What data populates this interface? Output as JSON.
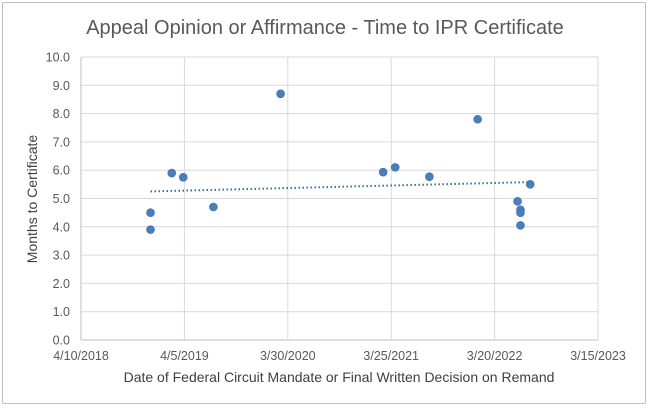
{
  "chart_data": {
    "type": "scatter",
    "title": "Appeal Opinion or Affirmance - Time to IPR Certificate",
    "xlabel": "Date of Federal Circuit Mandate or Final Written Decision on Remand",
    "ylabel": "Months to Certificate",
    "xlim": [
      "2018-04-10",
      "2023-03-15"
    ],
    "ylim": [
      0,
      10
    ],
    "x_ticks": [
      "4/10/2018",
      "4/5/2019",
      "3/30/2020",
      "3/25/2021",
      "3/20/2022",
      "3/15/2023"
    ],
    "y_ticks": [
      "0.0",
      "1.0",
      "2.0",
      "3.0",
      "4.0",
      "5.0",
      "6.0",
      "7.0",
      "8.0",
      "9.0",
      "10.0"
    ],
    "grid": true,
    "series": [
      {
        "name": "Months to Certificate",
        "color": "#4a7ebb",
        "points": [
          {
            "x": "2018-12-08",
            "y": 4.5
          },
          {
            "x": "2018-12-08",
            "y": 3.9
          },
          {
            "x": "2019-02-20",
            "y": 5.9
          },
          {
            "x": "2019-04-01",
            "y": 5.75
          },
          {
            "x": "2019-07-15",
            "y": 4.7
          },
          {
            "x": "2020-03-05",
            "y": 8.7
          },
          {
            "x": "2021-02-25",
            "y": 5.93
          },
          {
            "x": "2021-04-08",
            "y": 6.1
          },
          {
            "x": "2021-08-05",
            "y": 5.77
          },
          {
            "x": "2022-01-20",
            "y": 7.8
          },
          {
            "x": "2022-06-08",
            "y": 4.9
          },
          {
            "x": "2022-06-18",
            "y": 4.6
          },
          {
            "x": "2022-06-18",
            "y": 4.5
          },
          {
            "x": "2022-06-18",
            "y": 4.05
          },
          {
            "x": "2022-07-22",
            "y": 5.5
          }
        ]
      }
    ],
    "trendline": {
      "type": "linear",
      "color": "#2e6db4",
      "start": {
        "x": "2018-12-08",
        "y": 5.25
      },
      "end": {
        "x": "2022-07-22",
        "y": 5.58
      }
    }
  }
}
